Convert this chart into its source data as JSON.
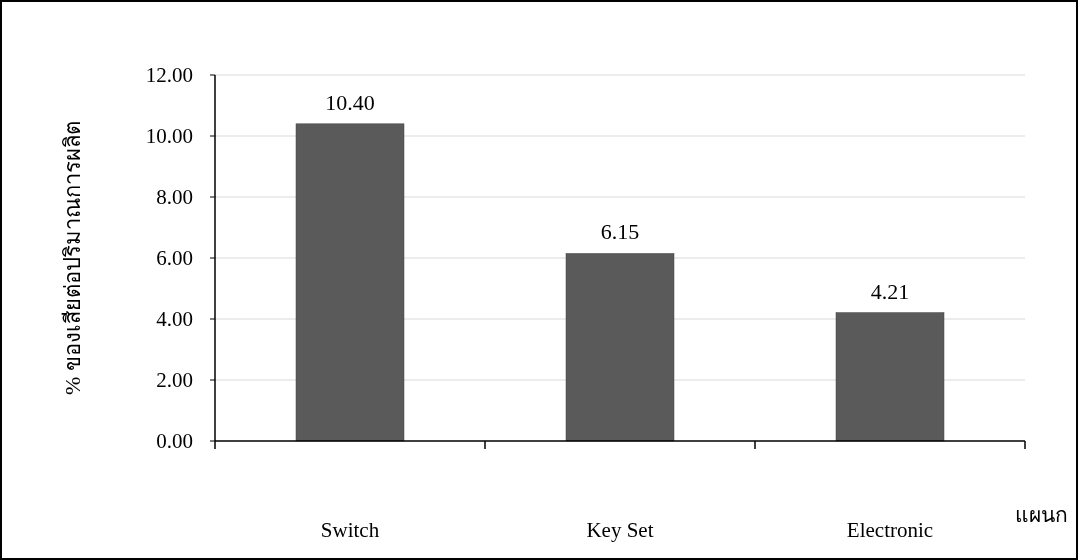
{
  "chart_data": {
    "type": "bar",
    "ylabel": "% ของเสียต่อปริมาณการผลิต",
    "xlabel": "แผนก",
    "categories": [
      "Switch",
      "Key Set",
      "Electronic"
    ],
    "values": [
      10.4,
      6.15,
      4.21
    ],
    "value_labels": [
      "10.40",
      "6.15",
      "4.21"
    ],
    "color": "#5a5a5a",
    "ylim": [
      0,
      12
    ],
    "yticks": [
      {
        "value": 0,
        "label": "0.00"
      },
      {
        "value": 2,
        "label": "2.00"
      },
      {
        "value": 4,
        "label": "4.00"
      },
      {
        "value": 6,
        "label": "6.00"
      },
      {
        "value": 8,
        "label": "8.00"
      },
      {
        "value": 10,
        "label": "10.00"
      },
      {
        "value": 12,
        "label": "12.00"
      }
    ],
    "grid": "y"
  }
}
